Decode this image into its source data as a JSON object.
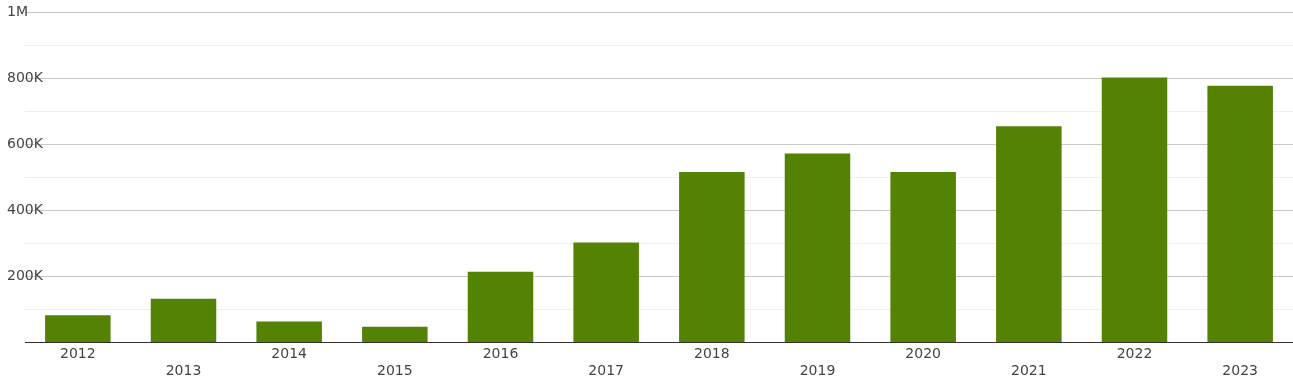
{
  "chart_data": {
    "type": "bar",
    "categories": [
      "2012",
      "2013",
      "2014",
      "2015",
      "2016",
      "2017",
      "2018",
      "2019",
      "2020",
      "2021",
      "2022",
      "2023"
    ],
    "values": [
      82000,
      132000,
      63000,
      47000,
      214000,
      302000,
      516000,
      572000,
      516000,
      654000,
      802000,
      777000
    ],
    "color": "#548203",
    "ylim": [
      0,
      1000000
    ],
    "yticks": [
      {
        "value": 0,
        "label": null
      },
      {
        "value": 100000,
        "label": null
      },
      {
        "value": 200000,
        "label": "200K"
      },
      {
        "value": 300000,
        "label": null
      },
      {
        "value": 400000,
        "label": "400K"
      },
      {
        "value": 500000,
        "label": null
      },
      {
        "value": 600000,
        "label": "600K"
      },
      {
        "value": 700000,
        "label": null
      },
      {
        "value": 800000,
        "label": "800K"
      },
      {
        "value": 900000,
        "label": null
      },
      {
        "value": 1000000,
        "label": "1M"
      }
    ],
    "grid": "y"
  }
}
